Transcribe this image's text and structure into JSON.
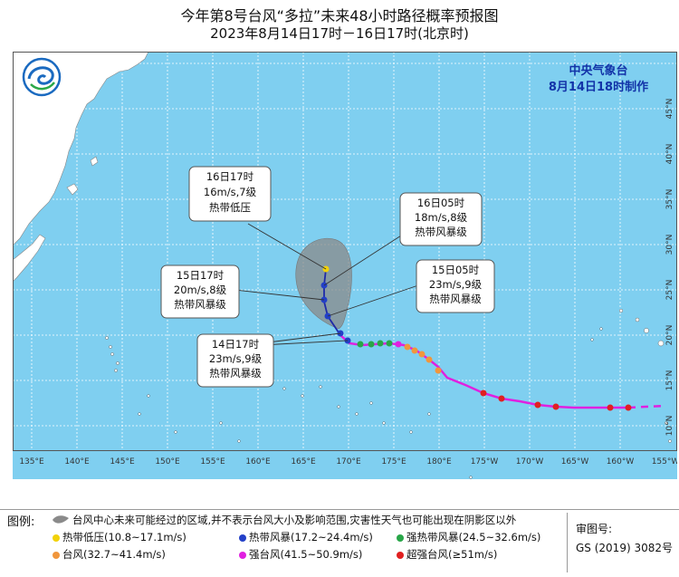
{
  "title": "今年第8号台风“多拉”未来48小时路径概率预报图",
  "subtitle": "2023年8月14日17时－16日17时(北京时)",
  "agency": "中央气象台",
  "issued": "8月14日18时制作",
  "colors": {
    "ocean": "#7fcff0",
    "land": "#ffffff",
    "cone": "#8a8a8a",
    "track": "#e020e0",
    "forecast_track": "#1f2aa8",
    "td": "#f2d20a",
    "ts": "#2340c8",
    "sts": "#28a648",
    "ty": "#f0963c",
    "sty": "#e020e0",
    "super_ty": "#e02020"
  },
  "map": {
    "lon_labels": [
      "135°E",
      "140°E",
      "145°E",
      "150°E",
      "155°E",
      "160°E",
      "165°E",
      "170°E",
      "175°E",
      "180°E",
      "175°W",
      "170°W",
      "165°W",
      "160°W",
      "155°W"
    ],
    "lat_labels": [
      "10°N",
      "15°N",
      "20°N",
      "25°N",
      "30°N",
      "35°N",
      "40°N",
      "45°N"
    ],
    "logo_icon": "cma-logo-icon"
  },
  "callouts": [
    {
      "time": "16日17时",
      "wind": "16m/s,7级",
      "level": "热带低压"
    },
    {
      "time": "16日05时",
      "wind": "18m/s,8级",
      "level": "热带风暴级"
    },
    {
      "time": "15日17时",
      "wind": "20m/s,8级",
      "level": "热带风暴级"
    },
    {
      "time": "15日05时",
      "wind": "23m/s,9级",
      "level": "热带风暴级"
    },
    {
      "time": "14日17时",
      "wind": "23m/s,9级",
      "level": "热带风暴级"
    }
  ],
  "legend": {
    "label": "图例:",
    "cone_text": "台风中心未来可能经过的区域,并不表示台风大小及影响范围,灾害性天气也可能出现在阴影区以外",
    "items": [
      {
        "icon": "td-dot-icon",
        "text": "热带低压(10.8~17.1m/s)"
      },
      {
        "icon": "ts-dot-icon",
        "text": "热带风暴(17.2~24.4m/s)"
      },
      {
        "icon": "sts-dot-icon",
        "text": "强热带风暴(24.5~32.6m/s)"
      },
      {
        "icon": "ty-dot-icon",
        "text": "台风(32.7~41.4m/s)"
      },
      {
        "icon": "sty-dot-icon",
        "text": "强台风(41.5~50.9m/s)"
      },
      {
        "icon": "super-ty-dot-icon",
        "text": "超强台风(≥51m/s)"
      }
    ],
    "review_label": "审图号:",
    "review_value": "GS (2019) 3082号"
  }
}
